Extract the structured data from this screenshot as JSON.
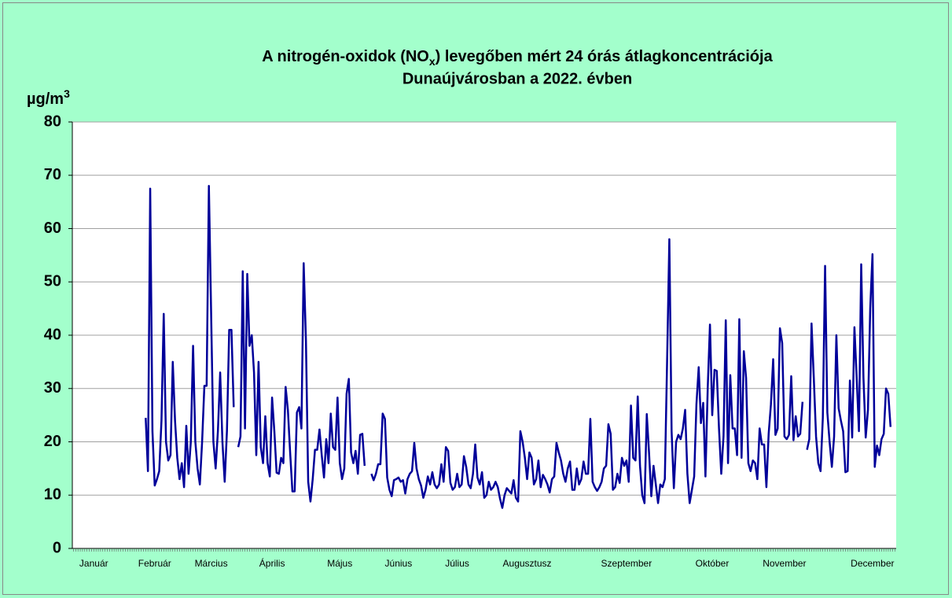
{
  "chart_data": {
    "type": "line",
    "title_parts": {
      "line1_before": "A nitrogén-oxidok (NO",
      "subscript": "x",
      "line1_after": ") levegőben mért 24 órás átlagkoncentrációja",
      "line2": "Dunaújvárosban a 2022. évben"
    },
    "ylabel": {
      "text": "µg/m",
      "superscript": "3"
    },
    "ylim": [
      0,
      80
    ],
    "yticks": [
      0,
      10,
      20,
      30,
      40,
      50,
      60,
      70,
      80
    ],
    "grid": true,
    "categories": [
      null,
      null,
      null,
      null,
      null,
      null,
      null,
      null,
      null,
      "Január",
      null,
      null,
      null,
      null,
      null,
      null,
      null,
      null,
      null,
      null,
      null,
      null,
      null,
      null,
      null,
      null,
      null,
      null,
      null,
      null,
      null,
      null,
      null,
      null,
      null,
      null,
      "Február",
      null,
      null,
      null,
      null,
      null,
      null,
      null,
      null,
      null,
      null,
      null,
      null,
      null,
      null,
      null,
      null,
      null,
      null,
      null,
      null,
      null,
      null,
      null,
      null,
      "Március",
      null,
      null,
      null,
      null,
      null,
      null,
      null,
      null,
      null,
      null,
      null,
      null,
      null,
      null,
      null,
      null,
      null,
      null,
      null,
      null,
      null,
      null,
      null,
      null,
      null,
      null,
      "Április",
      null,
      null,
      null,
      null,
      null,
      null,
      null,
      null,
      null,
      null,
      null,
      null,
      null,
      null,
      null,
      null,
      null,
      null,
      null,
      null,
      null,
      null,
      null,
      null,
      null,
      null,
      null,
      null,
      null,
      "Május",
      null,
      null,
      null,
      null,
      null,
      null,
      null,
      null,
      null,
      null,
      null,
      null,
      null,
      null,
      null,
      null,
      null,
      null,
      null,
      null,
      null,
      null,
      null,
      null,
      null,
      "Június",
      null,
      null,
      null,
      null,
      null,
      null,
      null,
      null,
      null,
      null,
      null,
      null,
      null,
      null,
      null,
      null,
      null,
      null,
      null,
      null,
      null,
      null,
      null,
      null,
      null,
      "Július",
      null,
      null,
      null,
      null,
      null,
      null,
      null,
      null,
      null,
      null,
      null,
      null,
      null,
      null,
      null,
      null,
      null,
      null,
      null,
      null,
      null,
      null,
      null,
      null,
      null,
      null,
      null,
      null,
      null,
      null,
      "Augusztusz",
      null,
      null,
      null,
      null,
      null,
      null,
      null,
      null,
      null,
      null,
      null,
      null,
      null,
      null,
      null,
      null,
      null,
      null,
      null,
      null,
      null,
      null,
      null,
      null,
      null,
      null,
      null,
      null,
      null,
      null,
      null,
      null,
      null,
      null,
      null,
      null,
      null,
      null,
      null,
      null,
      null,
      null,
      null,
      "Szeptember",
      null,
      null,
      null,
      null,
      null,
      null,
      null,
      null,
      null,
      null,
      null,
      null,
      null,
      null,
      null,
      null,
      null,
      null,
      null,
      null,
      null,
      null,
      null,
      null,
      null,
      null,
      null,
      null,
      null,
      null,
      null,
      null,
      null,
      null,
      null,
      null,
      null,
      "Október",
      null,
      null,
      null,
      null,
      null,
      null,
      null,
      null,
      null,
      null,
      null,
      null,
      null,
      null,
      null,
      null,
      null,
      null,
      null,
      null,
      null,
      null,
      null,
      null,
      null,
      null,
      null,
      null,
      null,
      null,
      null,
      "November",
      null,
      null,
      null,
      null,
      null,
      null,
      null,
      null,
      null,
      null,
      null,
      null,
      null,
      null,
      null,
      null,
      null,
      null,
      null,
      null,
      null,
      null,
      null,
      null,
      null,
      null,
      null,
      null,
      null,
      null,
      null,
      null,
      null,
      null,
      null,
      null,
      null,
      null,
      "December",
      null,
      null,
      null,
      null,
      null,
      null,
      null,
      null,
      null,
      null
    ],
    "series": [
      {
        "name": "NOx",
        "color": "#000099",
        "values": [
          null,
          null,
          null,
          null,
          null,
          null,
          null,
          null,
          null,
          null,
          null,
          null,
          null,
          null,
          null,
          null,
          null,
          null,
          null,
          null,
          null,
          null,
          null,
          null,
          null,
          null,
          null,
          null,
          null,
          null,
          null,
          null,
          24.5,
          14.5,
          67.5,
          22,
          11.8,
          13,
          14.5,
          24,
          44,
          20,
          16.5,
          17.5,
          35,
          24,
          17,
          13,
          16,
          11.5,
          23,
          14,
          20,
          38,
          20,
          15,
          12,
          20,
          30.5,
          30.5,
          68,
          44,
          20,
          15,
          22,
          33,
          20,
          12.5,
          22,
          41,
          41,
          26.5,
          null,
          19,
          21,
          52,
          22.5,
          51.5,
          38,
          40,
          33,
          17.5,
          35,
          19,
          16,
          24.8,
          16,
          13.5,
          28.3,
          22,
          14.2,
          14,
          17,
          16,
          30.3,
          26,
          18,
          10.7,
          10.7,
          25.5,
          26.5,
          22.5,
          53.5,
          39,
          12.5,
          8.8,
          13,
          18.5,
          18.5,
          22.3,
          17.5,
          13.3,
          20.5,
          16,
          25.3,
          19,
          18.5,
          28.3,
          16,
          13,
          15,
          29,
          31.8,
          18,
          16,
          18.3,
          14,
          21.3,
          21.5,
          15.5,
          null,
          null,
          14,
          12.8,
          14,
          15.8,
          15.8,
          25.3,
          24.3,
          13.3,
          11,
          9.8,
          12.8,
          13,
          13.3,
          12.5,
          12.8,
          10.3,
          13,
          14,
          14.5,
          19.8,
          15,
          13,
          11.8,
          9.5,
          11,
          13.5,
          12,
          14.3,
          12,
          11.3,
          12,
          15.8,
          12.5,
          19,
          18.3,
          12.3,
          11,
          11.5,
          14,
          11.5,
          12,
          17.3,
          15.3,
          12,
          11.3,
          14,
          19.5,
          13.3,
          12,
          14.3,
          9.5,
          10,
          12.5,
          11,
          11.5,
          12.5,
          11.5,
          9.3,
          7.6,
          10,
          11.3,
          10.8,
          10.3,
          12.8,
          9.5,
          8.8,
          22,
          20,
          17,
          13,
          18,
          17,
          12,
          13,
          16.5,
          11.5,
          13.8,
          13,
          12,
          10.5,
          13,
          13.5,
          19.8,
          18,
          16.5,
          14,
          12.5,
          15,
          16.3,
          11,
          11,
          15,
          12,
          13,
          16.3,
          14,
          14,
          24.3,
          12.5,
          11.5,
          10.8,
          11.5,
          12.5,
          15,
          15.5,
          23.3,
          21.5,
          11,
          11.5,
          14,
          12.3,
          17,
          15.5,
          16.5,
          12.5,
          26.8,
          17,
          16.5,
          28.5,
          15.5,
          10,
          8.5,
          25.2,
          18,
          9.8,
          15.5,
          12,
          8.5,
          12,
          11.5,
          13,
          35,
          58,
          22,
          11.3,
          20,
          21.3,
          20.5,
          22.5,
          26,
          14,
          8.5,
          11,
          13.5,
          27,
          34,
          23.5,
          27.3,
          13.5,
          30,
          42,
          25,
          33.5,
          33.3,
          22.5,
          14,
          21,
          42.8,
          16,
          32.5,
          22.5,
          22.5,
          17.5,
          43,
          17,
          37,
          32,
          16,
          14.5,
          16.5,
          16,
          13,
          22.5,
          19.5,
          19.5,
          11.5,
          21.5,
          27,
          35.5,
          21.3,
          22.5,
          41.3,
          38.5,
          21,
          20.5,
          21.3,
          32.3,
          20.3,
          24.8,
          21,
          21.5,
          27.5,
          null,
          18.5,
          20.5,
          42.2,
          32,
          21,
          16,
          14.5,
          24.5,
          53,
          25.5,
          20,
          15.3,
          21,
          40,
          26.3,
          24,
          22,
          14.3,
          14.5,
          31.5,
          20.8,
          41.5,
          32,
          22,
          53.3,
          32,
          20.8,
          26,
          45,
          55.2,
          15.3,
          19.3,
          17.5,
          20.5,
          21.5,
          30,
          29,
          22.8,
          null,
          null
        ]
      }
    ]
  }
}
